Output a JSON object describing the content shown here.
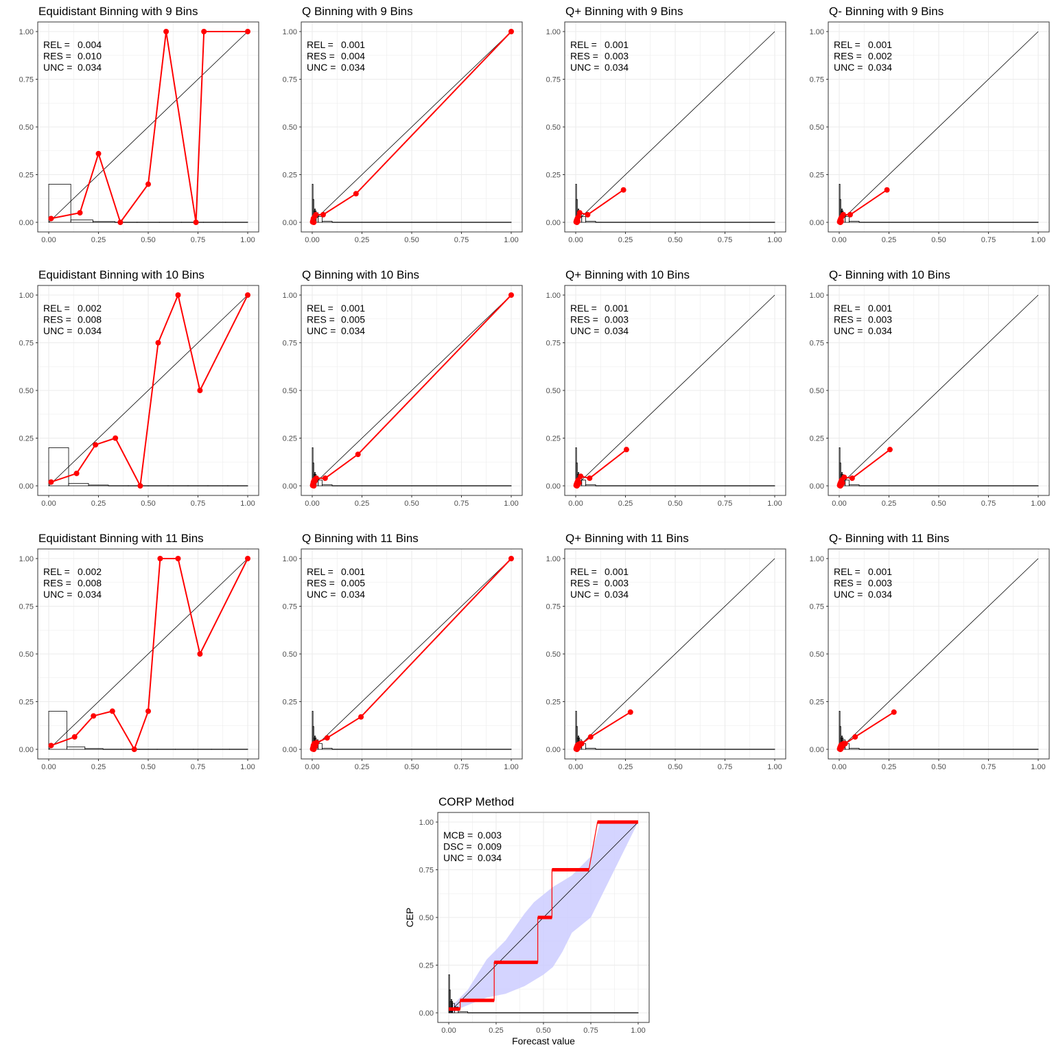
{
  "figure": {
    "colors": {
      "points": "#ff0000",
      "diagonal": "#000000",
      "histogram": "#000000",
      "band": "#ccccff",
      "grid": "#ebebeb",
      "panel_border": "#333333"
    }
  },
  "chart_data": [
    {
      "type": "line",
      "title": "Equidistant Binning with 9 Bins",
      "xlim": [
        0,
        1
      ],
      "ylim": [
        0,
        1
      ],
      "grid": true,
      "x_ticks": [
        "0.00",
        "0.25",
        "0.50",
        "0.75",
        "1.00"
      ],
      "y_ticks": [
        "0.00",
        "0.25",
        "0.50",
        "0.75",
        "1.00"
      ],
      "stats": [
        {
          "label": "REL =",
          "value": "0.004"
        },
        {
          "label": "RES =",
          "value": "0.010"
        },
        {
          "label": "UNC =",
          "value": "0.034"
        }
      ],
      "x": [
        0.012,
        0.157,
        0.25,
        0.36,
        0.5,
        0.59,
        0.74,
        0.78,
        1.0
      ],
      "y": [
        0.02,
        0.05,
        0.36,
        0.0,
        0.2,
        1.0,
        0.0,
        1.0,
        1.0
      ],
      "histogram": {
        "bin_edges": [
          0,
          0.111,
          0.222,
          0.333,
          0.444,
          0.556,
          0.667,
          0.778,
          0.889,
          1.0
        ],
        "heights": [
          0.2,
          0.013,
          0.004,
          0.001,
          0.001,
          0.001,
          0.001,
          0.001,
          0.001
        ]
      }
    },
    {
      "type": "line",
      "title": "Q Binning with 9 Bins",
      "xlim": [
        0,
        1
      ],
      "ylim": [
        0,
        1
      ],
      "grid": true,
      "x_ticks": [
        "0.00",
        "0.25",
        "0.50",
        "0.75",
        "1.00"
      ],
      "y_ticks": [
        "0.00",
        "0.25",
        "0.50",
        "0.75",
        "1.00"
      ],
      "stats": [
        {
          "label": "REL =",
          "value": "0.001"
        },
        {
          "label": "RES =",
          "value": "0.004"
        },
        {
          "label": "UNC =",
          "value": "0.034"
        }
      ],
      "x": [
        0.002,
        0.004,
        0.006,
        0.008,
        0.012,
        0.018,
        0.055,
        0.22,
        1.0
      ],
      "y": [
        0.002,
        0.01,
        0.02,
        0.0,
        0.03,
        0.04,
        0.04,
        0.15,
        1.0
      ],
      "histogram": {
        "bin_edges": [
          0,
          0.004,
          0.008,
          0.012,
          0.016,
          0.02,
          0.03,
          0.05,
          0.1,
          1.0
        ],
        "heights": [
          0.2,
          0.12,
          0.06,
          0.07,
          0.06,
          0.05,
          0.03,
          0.006,
          0.001
        ]
      }
    },
    {
      "type": "line",
      "title": "Q+ Binning with 9 Bins",
      "xlim": [
        0,
        1
      ],
      "ylim": [
        0,
        1
      ],
      "grid": true,
      "x_ticks": [
        "0.00",
        "0.25",
        "0.50",
        "0.75",
        "1.00"
      ],
      "y_ticks": [
        "0.00",
        "0.25",
        "0.50",
        "0.75",
        "1.00"
      ],
      "stats": [
        {
          "label": "REL =",
          "value": "0.001"
        },
        {
          "label": "RES =",
          "value": "0.003"
        },
        {
          "label": "UNC =",
          "value": "0.034"
        }
      ],
      "x": [
        0.002,
        0.004,
        0.006,
        0.008,
        0.01,
        0.014,
        0.02,
        0.06,
        0.24
      ],
      "y": [
        0.002,
        0.01,
        0.0,
        0.02,
        0.005,
        0.03,
        0.05,
        0.04,
        0.17
      ],
      "histogram": {
        "bin_edges": [
          0,
          0.004,
          0.008,
          0.012,
          0.016,
          0.02,
          0.03,
          0.05,
          0.1,
          1.0
        ],
        "heights": [
          0.2,
          0.12,
          0.06,
          0.07,
          0.06,
          0.05,
          0.03,
          0.006,
          0.001
        ]
      }
    },
    {
      "type": "line",
      "title": "Q- Binning with 9 Bins",
      "xlim": [
        0,
        1
      ],
      "ylim": [
        0,
        1
      ],
      "grid": true,
      "x_ticks": [
        "0.00",
        "0.25",
        "0.50",
        "0.75",
        "1.00"
      ],
      "y_ticks": [
        "0.00",
        "0.25",
        "0.50",
        "0.75",
        "1.00"
      ],
      "stats": [
        {
          "label": "REL =",
          "value": "0.001"
        },
        {
          "label": "RES =",
          "value": "0.002"
        },
        {
          "label": "UNC =",
          "value": "0.034"
        }
      ],
      "x": [
        0.002,
        0.004,
        0.006,
        0.008,
        0.01,
        0.014,
        0.02,
        0.055,
        0.24
      ],
      "y": [
        0.002,
        0.01,
        0.0,
        0.02,
        0.005,
        0.03,
        0.04,
        0.04,
        0.17
      ],
      "histogram": {
        "bin_edges": [
          0,
          0.004,
          0.008,
          0.012,
          0.016,
          0.02,
          0.03,
          0.05,
          0.1,
          1.0
        ],
        "heights": [
          0.2,
          0.12,
          0.06,
          0.07,
          0.06,
          0.05,
          0.03,
          0.006,
          0.001
        ]
      }
    },
    {
      "type": "line",
      "title": "Equidistant Binning with 10 Bins",
      "xlim": [
        0,
        1
      ],
      "ylim": [
        0,
        1
      ],
      "grid": true,
      "x_ticks": [
        "0.00",
        "0.25",
        "0.50",
        "0.75",
        "1.00"
      ],
      "y_ticks": [
        "0.00",
        "0.25",
        "0.50",
        "0.75",
        "1.00"
      ],
      "stats": [
        {
          "label": "REL =",
          "value": "0.002"
        },
        {
          "label": "RES =",
          "value": "0.008"
        },
        {
          "label": "UNC =",
          "value": "0.034"
        }
      ],
      "x": [
        0.012,
        0.14,
        0.235,
        0.335,
        0.46,
        0.55,
        0.65,
        0.76,
        1.0
      ],
      "y": [
        0.02,
        0.065,
        0.215,
        0.25,
        0.0,
        0.75,
        1.0,
        0.5,
        1.0
      ],
      "histogram": {
        "bin_edges": [
          0,
          0.1,
          0.2,
          0.3,
          0.4,
          0.5,
          0.6,
          0.7,
          0.8,
          0.9,
          1.0
        ],
        "heights": [
          0.2,
          0.013,
          0.004,
          0.001,
          0.001,
          0.001,
          0.001,
          0.001,
          0.001,
          0.001
        ]
      }
    },
    {
      "type": "line",
      "title": "Q Binning with 10 Bins",
      "xlim": [
        0,
        1
      ],
      "ylim": [
        0,
        1
      ],
      "grid": true,
      "x_ticks": [
        "0.00",
        "0.25",
        "0.50",
        "0.75",
        "1.00"
      ],
      "y_ticks": [
        "0.00",
        "0.25",
        "0.50",
        "0.75",
        "1.00"
      ],
      "stats": [
        {
          "label": "REL =",
          "value": "0.001"
        },
        {
          "label": "RES =",
          "value": "0.005"
        },
        {
          "label": "UNC =",
          "value": "0.034"
        }
      ],
      "x": [
        0.002,
        0.004,
        0.006,
        0.008,
        0.01,
        0.014,
        0.02,
        0.065,
        0.23,
        1.0
      ],
      "y": [
        0.002,
        0.01,
        0.02,
        0.0,
        0.03,
        0.025,
        0.04,
        0.04,
        0.165,
        1.0
      ],
      "histogram": {
        "bin_edges": [
          0,
          0.004,
          0.008,
          0.012,
          0.016,
          0.02,
          0.03,
          0.05,
          0.1,
          1.0
        ],
        "heights": [
          0.2,
          0.12,
          0.06,
          0.07,
          0.06,
          0.05,
          0.03,
          0.006,
          0.001
        ]
      }
    },
    {
      "type": "line",
      "title": "Q+ Binning with 10 Bins",
      "xlim": [
        0,
        1
      ],
      "ylim": [
        0,
        1
      ],
      "grid": true,
      "x_ticks": [
        "0.00",
        "0.25",
        "0.50",
        "0.75",
        "1.00"
      ],
      "y_ticks": [
        "0.00",
        "0.25",
        "0.50",
        "0.75",
        "1.00"
      ],
      "stats": [
        {
          "label": "REL =",
          "value": "0.001"
        },
        {
          "label": "RES =",
          "value": "0.003"
        },
        {
          "label": "UNC =",
          "value": "0.034"
        }
      ],
      "x": [
        0.002,
        0.004,
        0.006,
        0.008,
        0.01,
        0.012,
        0.016,
        0.025,
        0.07,
        0.255
      ],
      "y": [
        0.002,
        0.01,
        0.0,
        0.02,
        0.005,
        0.03,
        0.015,
        0.05,
        0.04,
        0.19
      ],
      "histogram": {
        "bin_edges": [
          0,
          0.004,
          0.008,
          0.012,
          0.016,
          0.02,
          0.03,
          0.05,
          0.1,
          1.0
        ],
        "heights": [
          0.2,
          0.12,
          0.06,
          0.07,
          0.06,
          0.05,
          0.03,
          0.006,
          0.001
        ]
      }
    },
    {
      "type": "line",
      "title": "Q- Binning with 10 Bins",
      "xlim": [
        0,
        1
      ],
      "ylim": [
        0,
        1
      ],
      "grid": true,
      "x_ticks": [
        "0.00",
        "0.25",
        "0.50",
        "0.75",
        "1.00"
      ],
      "y_ticks": [
        "0.00",
        "0.25",
        "0.50",
        "0.75",
        "1.00"
      ],
      "stats": [
        {
          "label": "REL =",
          "value": "0.001"
        },
        {
          "label": "RES =",
          "value": "0.003"
        },
        {
          "label": "UNC =",
          "value": "0.034"
        }
      ],
      "x": [
        0.002,
        0.004,
        0.006,
        0.008,
        0.01,
        0.012,
        0.016,
        0.025,
        0.065,
        0.255
      ],
      "y": [
        0.002,
        0.01,
        0.0,
        0.02,
        0.005,
        0.03,
        0.015,
        0.045,
        0.04,
        0.19
      ],
      "histogram": {
        "bin_edges": [
          0,
          0.004,
          0.008,
          0.012,
          0.016,
          0.02,
          0.03,
          0.05,
          0.1,
          1.0
        ],
        "heights": [
          0.2,
          0.12,
          0.06,
          0.07,
          0.06,
          0.05,
          0.03,
          0.006,
          0.001
        ]
      }
    },
    {
      "type": "line",
      "title": "Equidistant Binning with 11 Bins",
      "xlim": [
        0,
        1
      ],
      "ylim": [
        0,
        1
      ],
      "grid": true,
      "x_ticks": [
        "0.00",
        "0.25",
        "0.50",
        "0.75",
        "1.00"
      ],
      "y_ticks": [
        "0.00",
        "0.25",
        "0.50",
        "0.75",
        "1.00"
      ],
      "stats": [
        {
          "label": "REL =",
          "value": "0.002"
        },
        {
          "label": "RES =",
          "value": "0.008"
        },
        {
          "label": "UNC =",
          "value": "0.034"
        }
      ],
      "x": [
        0.012,
        0.13,
        0.225,
        0.32,
        0.43,
        0.5,
        0.56,
        0.65,
        0.76,
        1.0
      ],
      "y": [
        0.02,
        0.065,
        0.175,
        0.2,
        0.0,
        0.2,
        1.0,
        1.0,
        0.5,
        1.0
      ],
      "histogram": {
        "bin_edges": [
          0,
          0.091,
          0.182,
          0.273,
          0.364,
          0.455,
          0.545,
          0.636,
          0.727,
          0.818,
          0.909,
          1.0
        ],
        "heights": [
          0.2,
          0.013,
          0.004,
          0.001,
          0.001,
          0.001,
          0.001,
          0.001,
          0.001,
          0.001,
          0.001
        ]
      }
    },
    {
      "type": "line",
      "title": "Q Binning with 11 Bins",
      "xlim": [
        0,
        1
      ],
      "ylim": [
        0,
        1
      ],
      "grid": true,
      "x_ticks": [
        "0.00",
        "0.25",
        "0.50",
        "0.75",
        "1.00"
      ],
      "y_ticks": [
        "0.00",
        "0.25",
        "0.50",
        "0.75",
        "1.00"
      ],
      "stats": [
        {
          "label": "REL =",
          "value": "0.001"
        },
        {
          "label": "RES =",
          "value": "0.005"
        },
        {
          "label": "UNC =",
          "value": "0.034"
        }
      ],
      "x": [
        0.002,
        0.004,
        0.006,
        0.008,
        0.01,
        0.012,
        0.016,
        0.022,
        0.075,
        0.245,
        1.0
      ],
      "y": [
        0.002,
        0.01,
        0.02,
        0.0,
        0.03,
        0.025,
        0.015,
        0.035,
        0.06,
        0.17,
        1.0
      ],
      "histogram": {
        "bin_edges": [
          0,
          0.004,
          0.008,
          0.012,
          0.016,
          0.02,
          0.03,
          0.05,
          0.1,
          1.0
        ],
        "heights": [
          0.2,
          0.12,
          0.06,
          0.07,
          0.06,
          0.05,
          0.03,
          0.006,
          0.001
        ]
      }
    },
    {
      "type": "line",
      "title": "Q+ Binning with 11 Bins",
      "xlim": [
        0,
        1
      ],
      "ylim": [
        0,
        1
      ],
      "grid": true,
      "x_ticks": [
        "0.00",
        "0.25",
        "0.50",
        "0.75",
        "1.00"
      ],
      "y_ticks": [
        "0.00",
        "0.25",
        "0.50",
        "0.75",
        "1.00"
      ],
      "stats": [
        {
          "label": "REL =",
          "value": "0.001"
        },
        {
          "label": "RES =",
          "value": "0.003"
        },
        {
          "label": "UNC =",
          "value": "0.034"
        }
      ],
      "x": [
        0.002,
        0.004,
        0.006,
        0.008,
        0.01,
        0.012,
        0.016,
        0.022,
        0.03,
        0.075,
        0.275
      ],
      "y": [
        0.002,
        0.01,
        0.0,
        0.02,
        0.005,
        0.025,
        0.015,
        0.03,
        0.03,
        0.065,
        0.195
      ],
      "histogram": {
        "bin_edges": [
          0,
          0.004,
          0.008,
          0.012,
          0.016,
          0.02,
          0.03,
          0.05,
          0.1,
          1.0
        ],
        "heights": [
          0.2,
          0.12,
          0.06,
          0.07,
          0.06,
          0.05,
          0.03,
          0.006,
          0.001
        ]
      }
    },
    {
      "type": "line",
      "title": "Q- Binning with 11 Bins",
      "xlim": [
        0,
        1
      ],
      "ylim": [
        0,
        1
      ],
      "grid": true,
      "x_ticks": [
        "0.00",
        "0.25",
        "0.50",
        "0.75",
        "1.00"
      ],
      "y_ticks": [
        "0.00",
        "0.25",
        "0.50",
        "0.75",
        "1.00"
      ],
      "stats": [
        {
          "label": "REL =",
          "value": "0.001"
        },
        {
          "label": "RES =",
          "value": "0.003"
        },
        {
          "label": "UNC =",
          "value": "0.034"
        }
      ],
      "x": [
        0.002,
        0.004,
        0.006,
        0.008,
        0.01,
        0.012,
        0.016,
        0.022,
        0.03,
        0.08,
        0.275
      ],
      "y": [
        0.002,
        0.01,
        0.0,
        0.02,
        0.005,
        0.025,
        0.015,
        0.03,
        0.03,
        0.065,
        0.195
      ],
      "histogram": {
        "bin_edges": [
          0,
          0.004,
          0.008,
          0.012,
          0.016,
          0.02,
          0.03,
          0.05,
          0.1,
          1.0
        ],
        "heights": [
          0.2,
          0.12,
          0.06,
          0.07,
          0.06,
          0.05,
          0.03,
          0.006,
          0.001
        ]
      }
    },
    {
      "type": "line",
      "title": "CORP Method",
      "xlabel": "Forecast value",
      "ylabel": "CEP",
      "xlim": [
        0,
        1
      ],
      "ylim": [
        0,
        1
      ],
      "grid": true,
      "x_ticks": [
        "0.00",
        "0.25",
        "0.50",
        "0.75",
        "1.00"
      ],
      "y_ticks": [
        "0.00",
        "0.25",
        "0.50",
        "0.75",
        "1.00"
      ],
      "stats": [
        {
          "label": "MCB =",
          "value": "0.003"
        },
        {
          "label": "DSC =",
          "value": "0.009"
        },
        {
          "label": "UNC =",
          "value": "0.034"
        }
      ],
      "steps": [
        {
          "x0": 0.0,
          "x1": 0.06,
          "y": 0.02
        },
        {
          "x0": 0.06,
          "x1": 0.24,
          "y": 0.065
        },
        {
          "x0": 0.24,
          "x1": 0.47,
          "y": 0.265
        },
        {
          "x0": 0.47,
          "x1": 0.545,
          "y": 0.5
        },
        {
          "x0": 0.545,
          "x1": 0.74,
          "y": 0.75
        },
        {
          "x0": 0.785,
          "x1": 1.0,
          "y": 1.0
        }
      ],
      "band": {
        "x": [
          0.0,
          0.02,
          0.05,
          0.1,
          0.15,
          0.2,
          0.25,
          0.3,
          0.35,
          0.4,
          0.45,
          0.5,
          0.55,
          0.6,
          0.65,
          0.7,
          0.75,
          0.8,
          0.85,
          0.9,
          0.95,
          1.0
        ],
        "lower": [
          0.0,
          0.0,
          0.02,
          0.04,
          0.06,
          0.08,
          0.09,
          0.1,
          0.12,
          0.14,
          0.17,
          0.2,
          0.24,
          0.32,
          0.42,
          0.46,
          0.5,
          0.6,
          0.7,
          0.8,
          0.9,
          1.0
        ],
        "upper": [
          0.02,
          0.04,
          0.07,
          0.12,
          0.2,
          0.28,
          0.33,
          0.38,
          0.45,
          0.52,
          0.58,
          0.62,
          0.66,
          0.69,
          0.72,
          0.77,
          0.82,
          1.0,
          1.0,
          1.0,
          1.0,
          1.0
        ]
      },
      "histogram": {
        "bin_edges": [
          0,
          0.004,
          0.008,
          0.012,
          0.016,
          0.02,
          0.03,
          0.05,
          0.1,
          1.0
        ],
        "heights": [
          0.2,
          0.12,
          0.06,
          0.07,
          0.06,
          0.05,
          0.03,
          0.006,
          0.001
        ]
      }
    }
  ]
}
